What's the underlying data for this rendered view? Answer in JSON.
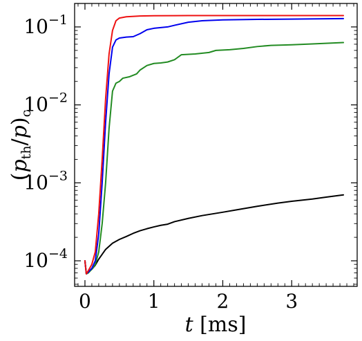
{
  "chart_data": {
    "type": "line",
    "xlabel": "t [ms]",
    "ylabel": "(p_th/p)_c",
    "xlim": [
      -0.15,
      3.95
    ],
    "ylim": [
      4.7e-05,
      0.2
    ],
    "y_scale": "log",
    "x_ticks": [
      {
        "value": 0,
        "label": "0"
      },
      {
        "value": 1,
        "label": "1"
      },
      {
        "value": 2,
        "label": "2"
      },
      {
        "value": 3,
        "label": "3"
      }
    ],
    "y_ticks": [
      {
        "value": 0.0001,
        "base": "10",
        "exp": "−4"
      },
      {
        "value": 0.001,
        "base": "10",
        "exp": "−3"
      },
      {
        "value": 0.01,
        "base": "10",
        "exp": "−2"
      },
      {
        "value": 0.1,
        "base": "10",
        "exp": "−1"
      }
    ],
    "grid": false,
    "series": [
      {
        "color": "#000000",
        "points": [
          [
            0.0,
            0.0001
          ],
          [
            0.02,
            6.8e-05
          ],
          [
            0.05,
            7.2e-05
          ],
          [
            0.1,
            7.8e-05
          ],
          [
            0.15,
            8.8e-05
          ],
          [
            0.2,
            0.000105
          ],
          [
            0.3,
            0.00014
          ],
          [
            0.4,
            0.000168
          ],
          [
            0.5,
            0.000188
          ],
          [
            0.6,
            0.000205
          ],
          [
            0.7,
            0.000225
          ],
          [
            0.8,
            0.000243
          ],
          [
            0.9,
            0.000258
          ],
          [
            1.0,
            0.000272
          ],
          [
            1.1,
            0.000285
          ],
          [
            1.2,
            0.000295
          ],
          [
            1.3,
            0.000318
          ],
          [
            1.5,
            0.00035
          ],
          [
            1.7,
            0.00038
          ],
          [
            2.0,
            0.00042
          ],
          [
            2.2,
            0.00045
          ],
          [
            2.5,
            0.0005
          ],
          [
            2.8,
            0.00055
          ],
          [
            3.0,
            0.00058
          ],
          [
            3.3,
            0.00062
          ],
          [
            3.5,
            0.000655
          ],
          [
            3.75,
            0.0007
          ]
        ]
      },
      {
        "color": "#228B22",
        "points": [
          [
            0.0,
            0.0001
          ],
          [
            0.02,
            6.8e-05
          ],
          [
            0.05,
            7e-05
          ],
          [
            0.1,
            7.8e-05
          ],
          [
            0.15,
            9e-05
          ],
          [
            0.2,
            0.00013
          ],
          [
            0.25,
            0.0003
          ],
          [
            0.3,
            0.001
          ],
          [
            0.35,
            0.005
          ],
          [
            0.4,
            0.015
          ],
          [
            0.45,
            0.019
          ],
          [
            0.5,
            0.02
          ],
          [
            0.55,
            0.022
          ],
          [
            0.65,
            0.023
          ],
          [
            0.75,
            0.025
          ],
          [
            0.8,
            0.028
          ],
          [
            0.9,
            0.032
          ],
          [
            1.0,
            0.034
          ],
          [
            1.1,
            0.0345
          ],
          [
            1.2,
            0.0355
          ],
          [
            1.3,
            0.038
          ],
          [
            1.4,
            0.044
          ],
          [
            1.6,
            0.045
          ],
          [
            1.8,
            0.047
          ],
          [
            1.9,
            0.05
          ],
          [
            2.1,
            0.051
          ],
          [
            2.3,
            0.053
          ],
          [
            2.5,
            0.056
          ],
          [
            2.7,
            0.058
          ],
          [
            3.0,
            0.059
          ],
          [
            3.3,
            0.0605
          ],
          [
            3.75,
            0.063
          ]
        ]
      },
      {
        "color": "#0000EE",
        "points": [
          [
            0.0,
            0.0001
          ],
          [
            0.02,
            6.8e-05
          ],
          [
            0.05,
            7.2e-05
          ],
          [
            0.1,
            8e-05
          ],
          [
            0.15,
            0.0001
          ],
          [
            0.2,
            0.00022
          ],
          [
            0.25,
            0.001
          ],
          [
            0.3,
            0.006
          ],
          [
            0.35,
            0.025
          ],
          [
            0.4,
            0.055
          ],
          [
            0.45,
            0.068
          ],
          [
            0.5,
            0.072
          ],
          [
            0.6,
            0.074
          ],
          [
            0.7,
            0.075
          ],
          [
            0.8,
            0.082
          ],
          [
            0.9,
            0.092
          ],
          [
            1.0,
            0.096
          ],
          [
            1.1,
            0.098
          ],
          [
            1.2,
            0.1
          ],
          [
            1.3,
            0.105
          ],
          [
            1.5,
            0.115
          ],
          [
            1.7,
            0.12
          ],
          [
            2.0,
            0.123
          ],
          [
            2.5,
            0.125
          ],
          [
            3.0,
            0.126
          ],
          [
            3.75,
            0.128
          ]
        ]
      },
      {
        "color": "#EE1111",
        "points": [
          [
            0.0,
            0.0001
          ],
          [
            0.02,
            6.8e-05
          ],
          [
            0.05,
            7.5e-05
          ],
          [
            0.1,
            9e-05
          ],
          [
            0.15,
            0.00013
          ],
          [
            0.2,
            0.0004
          ],
          [
            0.25,
            0.002
          ],
          [
            0.3,
            0.012
          ],
          [
            0.35,
            0.045
          ],
          [
            0.4,
            0.09
          ],
          [
            0.45,
            0.12
          ],
          [
            0.5,
            0.13
          ],
          [
            0.6,
            0.135
          ],
          [
            0.8,
            0.138
          ],
          [
            1.0,
            0.139
          ],
          [
            1.5,
            0.14
          ],
          [
            2.0,
            0.14
          ],
          [
            3.0,
            0.14
          ],
          [
            3.75,
            0.14
          ]
        ]
      }
    ]
  }
}
